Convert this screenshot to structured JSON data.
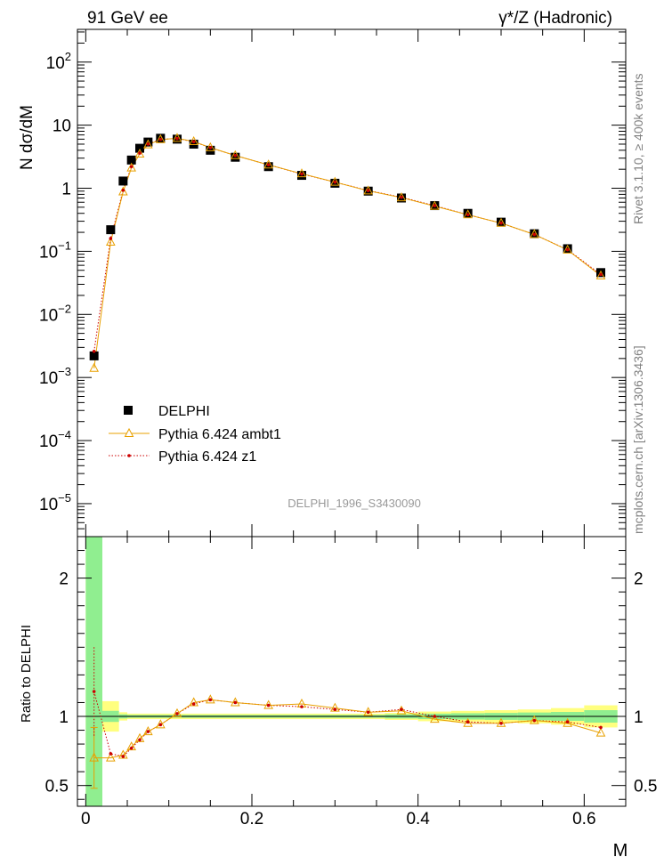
{
  "header": {
    "left_title": "91 GeV ee",
    "right_title": "γ*/Z (Hadronic)"
  },
  "side_labels": {
    "rivet": "Rivet 3.1.10, ≥ 400k events",
    "mcplots": "mcplots.cern.ch [arXiv:1306.3436]"
  },
  "analysis_id": "DELPHI_1996_S3430090",
  "colors": {
    "data": "#000000",
    "ambt1": "#e8a000",
    "z1": "#cc0000",
    "band_green": "#90ee90",
    "band_yellow": "#ffff7f"
  },
  "chart_data": [
    {
      "type": "scatter",
      "ylabel": "N dσ/dM",
      "yscale": "log",
      "xlim": [
        -0.01,
        0.65
      ],
      "ylim": [
        3e-06,
        330
      ],
      "y_ticks": [
        {
          "v": 1e-05,
          "base": "10",
          "exp": "−5"
        },
        {
          "v": 0.0001,
          "base": "10",
          "exp": "−4"
        },
        {
          "v": 0.001,
          "base": "10",
          "exp": "−3"
        },
        {
          "v": 0.01,
          "base": "10",
          "exp": "−2"
        },
        {
          "v": 0.1,
          "base": "10",
          "exp": "−1"
        },
        {
          "v": 1,
          "base": "1",
          "exp": ""
        },
        {
          "v": 10,
          "base": "10",
          "exp": ""
        },
        {
          "v": 100,
          "base": "10",
          "exp": "2"
        }
      ],
      "legend_position": "middle-left",
      "x": [
        0.01,
        0.03,
        0.045,
        0.055,
        0.065,
        0.075,
        0.09,
        0.11,
        0.13,
        0.15,
        0.18,
        0.22,
        0.26,
        0.3,
        0.34,
        0.38,
        0.42,
        0.46,
        0.5,
        0.54,
        0.58,
        0.62
      ],
      "series": [
        {
          "name": "DELPHI",
          "values": [
            0.0022,
            0.22,
            1.3,
            2.8,
            4.3,
            5.4,
            6.2,
            6.0,
            5.0,
            4.0,
            3.1,
            2.2,
            1.6,
            1.2,
            0.9,
            0.7,
            0.53,
            0.4,
            0.29,
            0.19,
            0.11,
            0.046
          ]
        },
        {
          "name": "Pythia 6.424 ambt1",
          "values": [
            0.0014,
            0.14,
            0.88,
            2.1,
            3.5,
            4.9,
            5.9,
            6.2,
            5.5,
            4.4,
            3.3,
            2.35,
            1.7,
            1.25,
            0.91,
            0.71,
            0.52,
            0.38,
            0.28,
            0.185,
            0.105,
            0.041
          ]
        },
        {
          "name": "Pythia 6.424 z1",
          "values": [
            0.0026,
            0.16,
            0.93,
            2.2,
            3.6,
            5.0,
            5.95,
            6.15,
            5.45,
            4.4,
            3.3,
            2.35,
            1.68,
            1.25,
            0.92,
            0.72,
            0.53,
            0.38,
            0.28,
            0.185,
            0.106,
            0.043
          ]
        }
      ]
    },
    {
      "type": "scatter",
      "xlabel": "M",
      "ylabel": "Ratio to DELPHI",
      "yscale": "linear",
      "xlim": [
        -0.01,
        0.65
      ],
      "ylim": [
        0.35,
        2.3
      ],
      "x_ticks": [
        {
          "v": 0,
          "label": "0"
        },
        {
          "v": 0.2,
          "label": "0.2"
        },
        {
          "v": 0.4,
          "label": "0.4"
        },
        {
          "v": 0.6,
          "label": "0.6"
        }
      ],
      "y_ticks": [
        {
          "v": 0.5,
          "label": "0.5"
        },
        {
          "v": 1,
          "label": "1"
        },
        {
          "v": 2,
          "label": "2"
        }
      ],
      "reference_line": 1,
      "bands": [
        {
          "x0": 0.0,
          "x1": 0.02,
          "g_lo": 0.35,
          "g_hi": 2.3,
          "y_lo": 0.35,
          "y_hi": 2.3
        },
        {
          "x0": 0.02,
          "x1": 0.04,
          "g_lo": 0.96,
          "g_hi": 1.04,
          "y_lo": 0.89,
          "y_hi": 1.11
        },
        {
          "x0": 0.04,
          "x1": 0.05,
          "g_lo": 0.985,
          "g_hi": 1.015,
          "y_lo": 0.97,
          "y_hi": 1.03
        },
        {
          "x0": 0.05,
          "x1": 0.36,
          "g_lo": 0.99,
          "g_hi": 1.01,
          "y_lo": 0.98,
          "y_hi": 1.02
        },
        {
          "x0": 0.36,
          "x1": 0.4,
          "g_lo": 0.985,
          "g_hi": 1.015,
          "y_lo": 0.975,
          "y_hi": 1.025
        },
        {
          "x0": 0.4,
          "x1": 0.44,
          "g_lo": 0.98,
          "g_hi": 1.02,
          "y_lo": 0.965,
          "y_hi": 1.035
        },
        {
          "x0": 0.44,
          "x1": 0.48,
          "g_lo": 0.977,
          "g_hi": 1.023,
          "y_lo": 0.96,
          "y_hi": 1.04
        },
        {
          "x0": 0.48,
          "x1": 0.52,
          "g_lo": 0.975,
          "g_hi": 1.025,
          "y_lo": 0.955,
          "y_hi": 1.045
        },
        {
          "x0": 0.52,
          "x1": 0.56,
          "g_lo": 0.972,
          "g_hi": 1.028,
          "y_lo": 0.95,
          "y_hi": 1.05
        },
        {
          "x0": 0.56,
          "x1": 0.6,
          "g_lo": 0.968,
          "g_hi": 1.032,
          "y_lo": 0.94,
          "y_hi": 1.06
        },
        {
          "x0": 0.6,
          "x1": 0.64,
          "g_lo": 0.955,
          "g_hi": 1.045,
          "y_lo": 0.92,
          "y_hi": 1.08
        }
      ],
      "x": [
        0.01,
        0.03,
        0.045,
        0.055,
        0.065,
        0.075,
        0.09,
        0.11,
        0.13,
        0.15,
        0.18,
        0.22,
        0.26,
        0.3,
        0.34,
        0.38,
        0.42,
        0.46,
        0.5,
        0.54,
        0.58,
        0.62
      ],
      "series": [
        {
          "name": "Pythia 6.424 ambt1",
          "values": [
            0.7,
            0.7,
            0.72,
            0.78,
            0.84,
            0.89,
            0.94,
            1.02,
            1.1,
            1.12,
            1.1,
            1.08,
            1.09,
            1.06,
            1.03,
            1.04,
            0.98,
            0.95,
            0.95,
            0.97,
            0.95,
            0.88
          ],
          "err": [
            0.22,
            0.02,
            0.02,
            0.02,
            0.01,
            0.01,
            0.01,
            0.01,
            0.01,
            0.01,
            0.01,
            0.01,
            0.01,
            0.01,
            0.01,
            0.01,
            0.01,
            0.01,
            0.01,
            0.01,
            0.015,
            0.02
          ]
        },
        {
          "name": "Pythia 6.424 z1",
          "values": [
            1.18,
            0.73,
            0.71,
            0.77,
            0.83,
            0.89,
            0.94,
            1.02,
            1.09,
            1.12,
            1.1,
            1.08,
            1.07,
            1.05,
            1.03,
            1.05,
            1.0,
            0.96,
            0.95,
            0.97,
            0.96,
            0.92
          ],
          "err": [
            0.32,
            0.02,
            0.02,
            0.02,
            0.01,
            0.01,
            0.01,
            0.01,
            0.01,
            0.01,
            0.01,
            0.01,
            0.01,
            0.01,
            0.01,
            0.01,
            0.01,
            0.01,
            0.01,
            0.01,
            0.015,
            0.02
          ]
        }
      ]
    }
  ]
}
